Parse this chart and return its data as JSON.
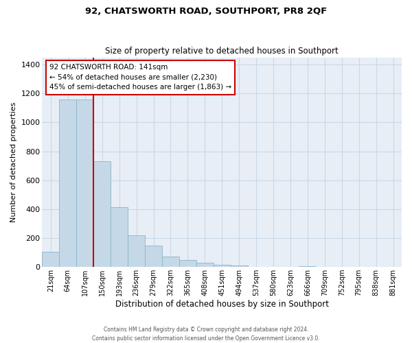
{
  "title": "92, CHATSWORTH ROAD, SOUTHPORT, PR8 2QF",
  "subtitle": "Size of property relative to detached houses in Southport",
  "xlabel": "Distribution of detached houses by size in Southport",
  "ylabel": "Number of detached properties",
  "bar_labels": [
    "21sqm",
    "64sqm",
    "107sqm",
    "150sqm",
    "193sqm",
    "236sqm",
    "279sqm",
    "322sqm",
    "365sqm",
    "408sqm",
    "451sqm",
    "494sqm",
    "537sqm",
    "580sqm",
    "623sqm",
    "666sqm",
    "709sqm",
    "752sqm",
    "795sqm",
    "838sqm",
    "881sqm"
  ],
  "bar_values": [
    107,
    1160,
    1160,
    730,
    415,
    220,
    148,
    73,
    50,
    30,
    17,
    12,
    0,
    0,
    0,
    5,
    0,
    0,
    0,
    0,
    3
  ],
  "bar_color": "#c5d8e8",
  "bar_edgecolor": "#8ab4cc",
  "vline_index": 2.5,
  "vline_color": "#cc0000",
  "ylim": [
    0,
    1450
  ],
  "yticks": [
    0,
    200,
    400,
    600,
    800,
    1000,
    1200,
    1400
  ],
  "annotation_title": "92 CHATSWORTH ROAD: 141sqm",
  "annotation_line1": "← 54% of detached houses are smaller (2,230)",
  "annotation_line2": "45% of semi-detached houses are larger (1,863) →",
  "annotation_box_facecolor": "#ffffff",
  "annotation_box_edgecolor": "#cc0000",
  "footer_line1": "Contains HM Land Registry data © Crown copyright and database right 2024.",
  "footer_line2": "Contains public sector information licensed under the Open Government Licence v3.0.",
  "fig_facecolor": "#ffffff",
  "axes_facecolor": "#e8eef5",
  "grid_color": "#c8d8e8"
}
